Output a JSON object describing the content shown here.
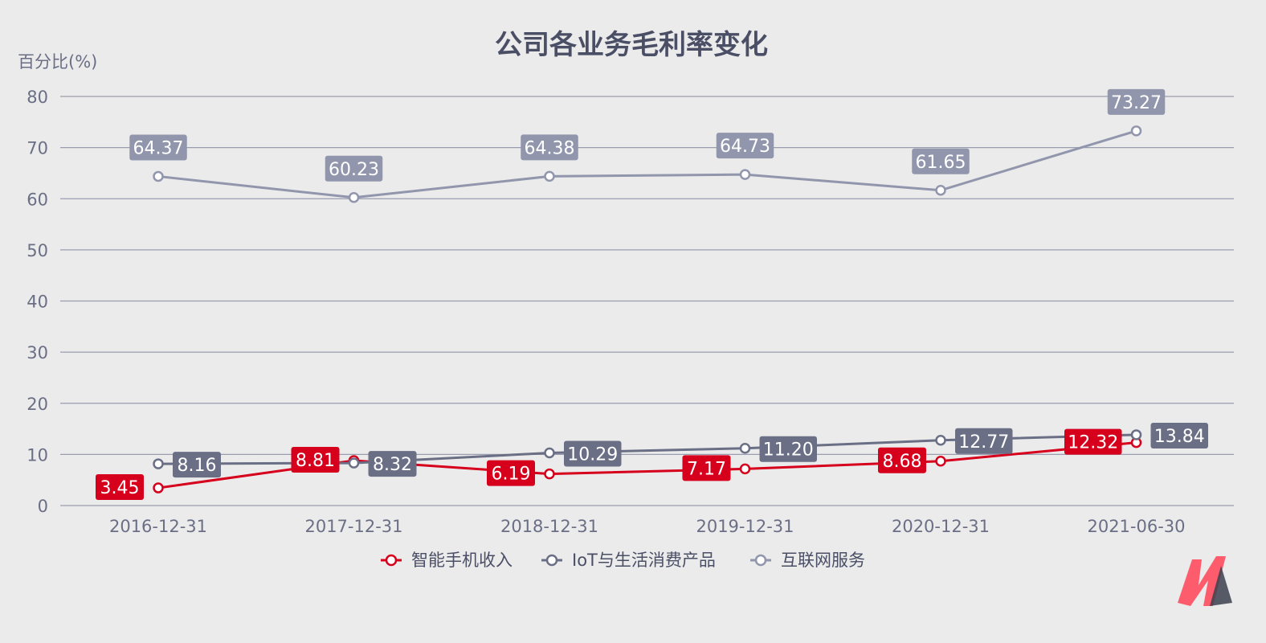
{
  "chart_data": {
    "type": "line",
    "title": "公司各业务毛利率变化",
    "ylabel": "百分比(%)",
    "xlabel": "",
    "ylim": [
      0,
      80
    ],
    "yticks": [
      0,
      10,
      20,
      30,
      40,
      50,
      60,
      70,
      80
    ],
    "categories": [
      "2016-12-31",
      "2017-12-31",
      "2018-12-31",
      "2019-12-31",
      "2020-12-31",
      "2021-06-30"
    ],
    "grid": true,
    "legend_position": "bottom",
    "series": [
      {
        "name": "智能手机收入",
        "color": "#d6001c",
        "values": [
          3.45,
          8.81,
          6.19,
          7.17,
          8.68,
          12.32
        ],
        "labels": [
          "3.45",
          "8.81",
          "6.19",
          "7.17",
          "8.68",
          "12.32"
        ]
      },
      {
        "name": "IoT与生活消费产品",
        "color": "#6b6f86",
        "values": [
          8.16,
          8.32,
          10.29,
          11.2,
          12.77,
          13.84
        ],
        "labels": [
          "8.16",
          "8.32",
          "10.29",
          "11.20",
          "12.77",
          "13.84"
        ]
      },
      {
        "name": "互联网服务",
        "color": "#9196ad",
        "values": [
          64.37,
          60.23,
          64.38,
          64.73,
          61.65,
          73.27
        ],
        "labels": [
          "64.37",
          "60.23",
          "64.38",
          "64.73",
          "61.65",
          "73.27"
        ]
      }
    ]
  },
  "colors": {
    "background": "#ebebeb",
    "grid": "#9a9db0",
    "axis_text": "#6b6f86",
    "title": "#4b4f66"
  },
  "logo": {
    "name": "brand-logo-icon"
  }
}
